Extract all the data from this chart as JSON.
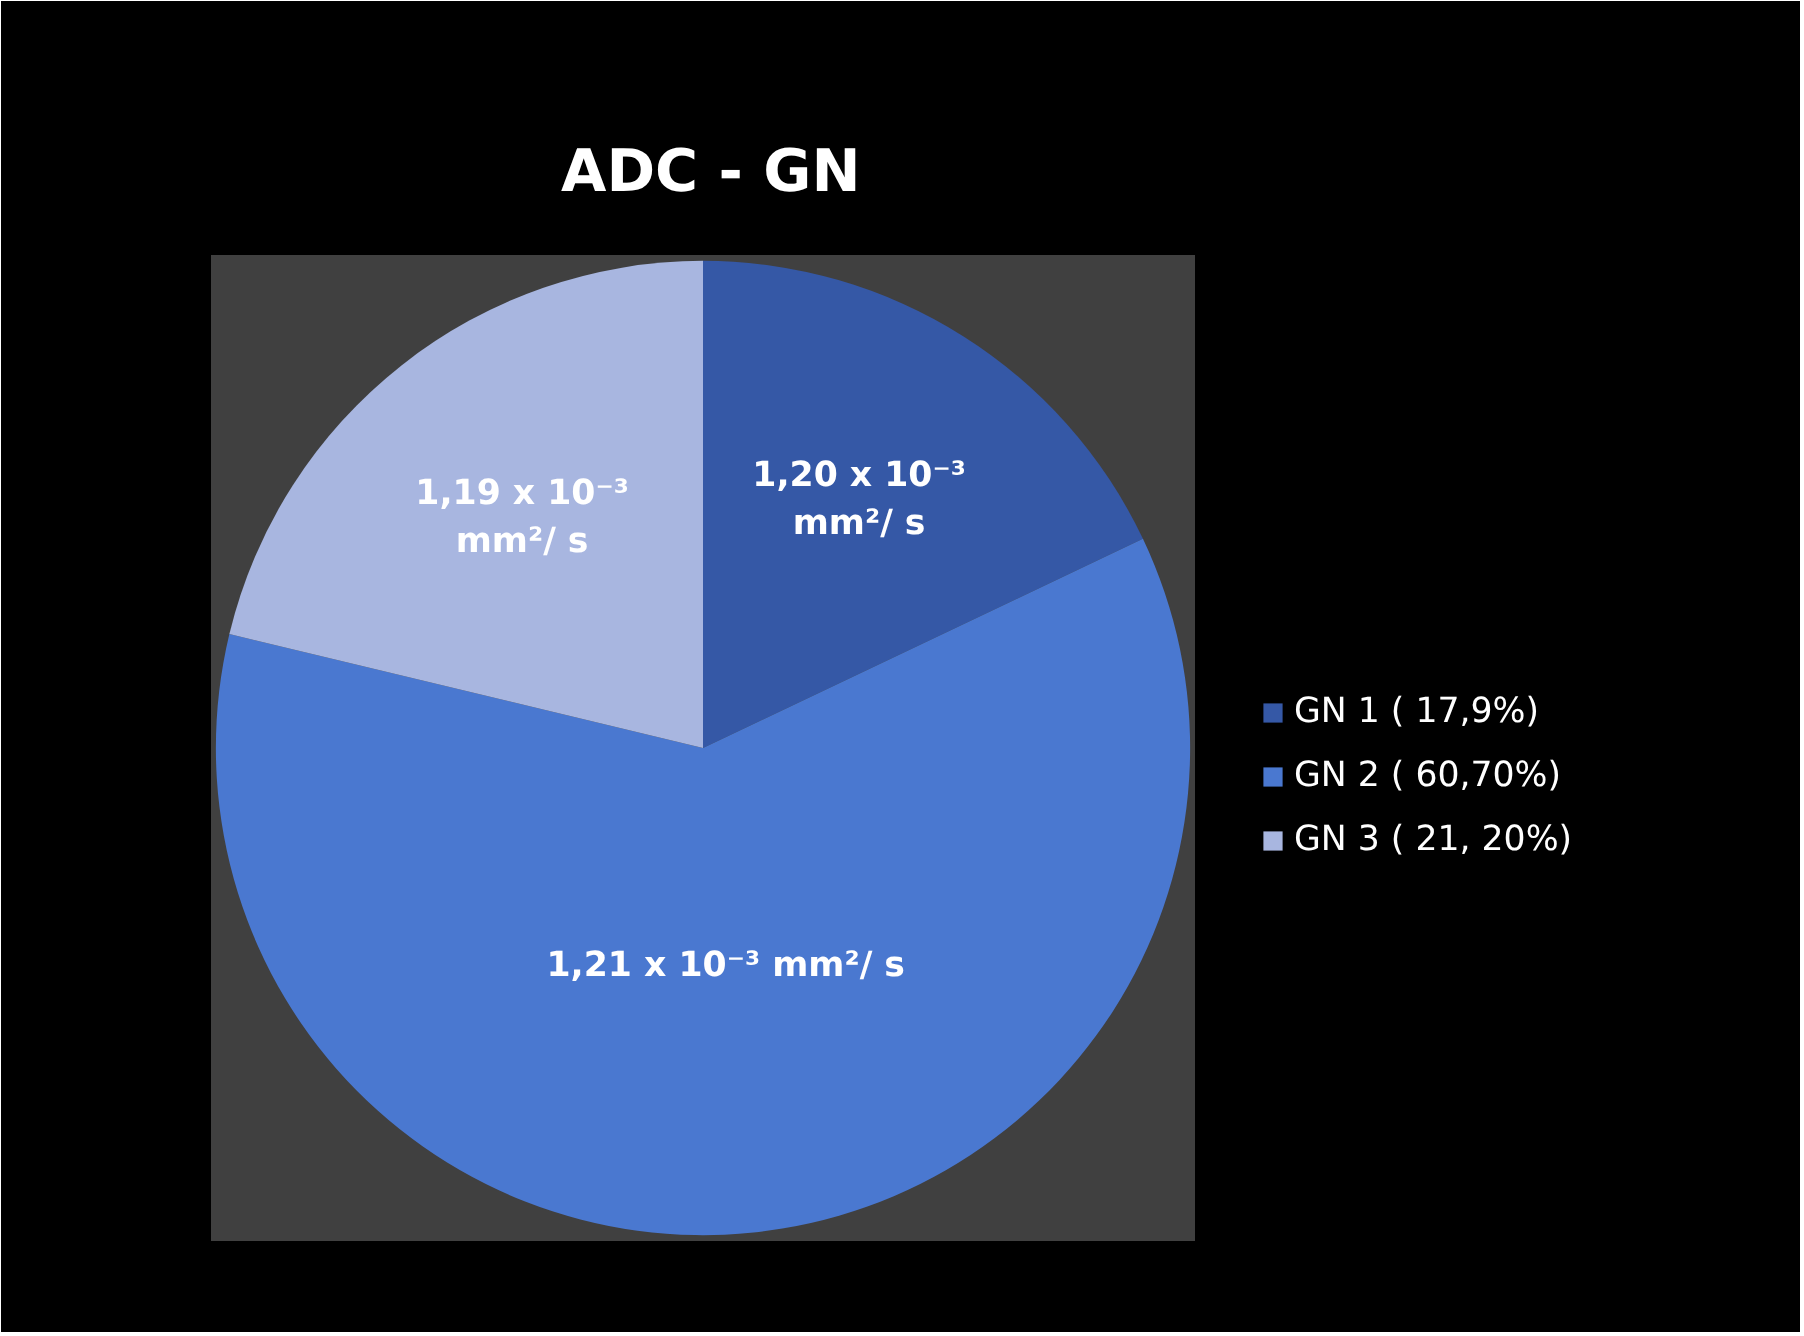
{
  "chart_data": {
    "type": "pie",
    "title": "ADC - GN",
    "categories": [
      "GN 1 ( 17,9%)",
      "GN 2 ( 60,70%)",
      "GN 3 ( 21, 20%)"
    ],
    "values": [
      17.9,
      60.7,
      21.2
    ],
    "colors": [
      "#3558a6",
      "#4a78d0",
      "#a8b6e0"
    ],
    "annotations": [
      "1,20 x 10⁻³\nmm²/ s",
      "1,21 x 10⁻³ mm²/ s",
      "1,19 x 10⁻³\nmm²/ s"
    ],
    "legend": "right"
  }
}
